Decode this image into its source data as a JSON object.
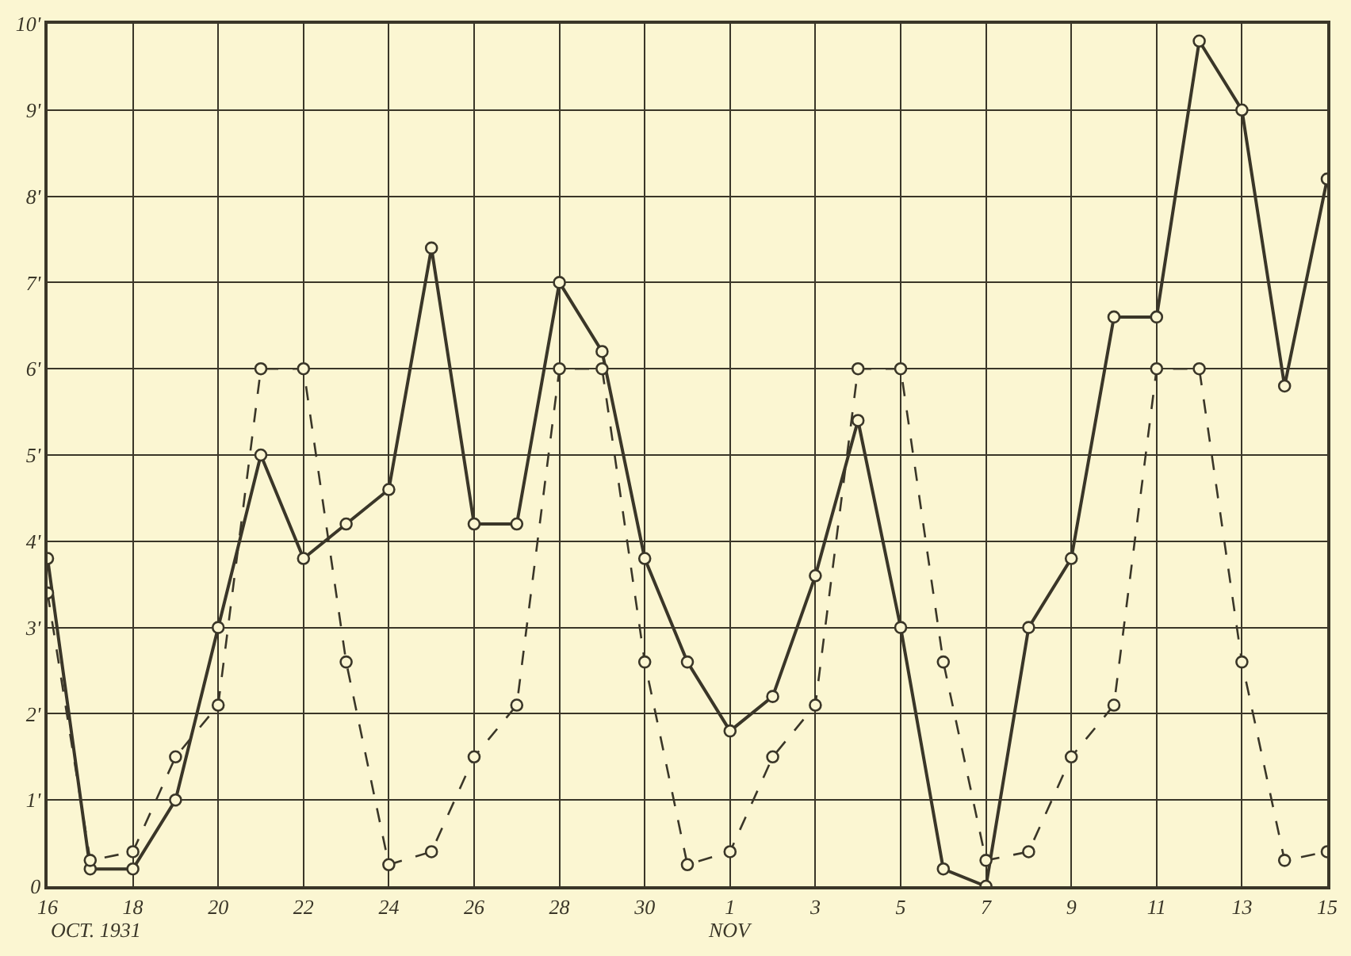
{
  "chart_data": {
    "type": "line",
    "x": [
      "1931-10-16",
      "1931-10-17",
      "1931-10-18",
      "1931-10-19",
      "1931-10-20",
      "1931-10-21",
      "1931-10-22",
      "1931-10-23",
      "1931-10-24",
      "1931-10-25",
      "1931-10-26",
      "1931-10-27",
      "1931-10-28",
      "1931-10-29",
      "1931-10-30",
      "1931-10-31",
      "1931-11-01",
      "1931-11-02",
      "1931-11-03",
      "1931-11-04",
      "1931-11-05",
      "1931-11-06",
      "1931-11-07",
      "1931-11-08",
      "1931-11-09",
      "1931-11-10",
      "1931-11-11",
      "1931-11-12",
      "1931-11-13",
      "1931-11-14",
      "1931-11-15"
    ],
    "series": [
      {
        "color": "#3a3628",
        "line_style": "solid",
        "values": [
          3.8,
          0.2,
          0.2,
          1.0,
          3.0,
          5.0,
          3.8,
          4.2,
          4.6,
          7.4,
          4.2,
          4.2,
          7.0,
          6.2,
          3.8,
          2.6,
          1.8,
          2.2,
          3.6,
          5.4,
          3.0,
          0.2,
          0,
          3.0,
          3.8,
          6.6,
          6.6,
          9.8,
          9.0,
          5.8,
          8.2
        ]
      },
      {
        "color": "#3a3628",
        "line_style": "dashed",
        "values": [
          3.4,
          0.3,
          0.4,
          1.5,
          2.1,
          6,
          6,
          2.6,
          0.25,
          0.4,
          1.5,
          2.1,
          6,
          6,
          2.6,
          0.25,
          0.4,
          1.5,
          2.1,
          6,
          6,
          2.6,
          0.3,
          0.4,
          1.5,
          2.1,
          6,
          6,
          2.6,
          0.3,
          0.4
        ]
      }
    ],
    "xlim": [
      "1931-10-16",
      "1931-11-15"
    ],
    "xticks": [
      {
        "value": "1931-10-16",
        "label": "16"
      },
      {
        "value": "1931-10-18",
        "label": "18"
      },
      {
        "value": "1931-10-20",
        "label": "20"
      },
      {
        "value": "1931-10-22",
        "label": "22"
      },
      {
        "value": "1931-10-24",
        "label": "24"
      },
      {
        "value": "1931-10-26",
        "label": "26"
      },
      {
        "value": "1931-10-28",
        "label": "28"
      },
      {
        "value": "1931-10-30",
        "label": "30"
      },
      {
        "value": "1931-11-01",
        "label": "1"
      },
      {
        "value": "1931-11-03",
        "label": "3"
      },
      {
        "value": "1931-11-05",
        "label": "5"
      },
      {
        "value": "1931-11-07",
        "label": "7"
      },
      {
        "value": "1931-11-09",
        "label": "9"
      },
      {
        "value": "1931-11-11",
        "label": "11"
      },
      {
        "value": "1931-11-13",
        "label": "13"
      },
      {
        "value": "1931-11-15",
        "label": "15"
      }
    ],
    "ylim": [
      0,
      10
    ],
    "yticks": [
      0,
      {
        "value": 1,
        "label": "1'"
      },
      {
        "value": 2,
        "label": "2'"
      },
      {
        "value": 3,
        "label": "3'"
      },
      {
        "value": 4,
        "label": "4'"
      },
      {
        "value": 5,
        "label": "5'"
      },
      {
        "value": 6,
        "label": "6'"
      },
      {
        "value": 7,
        "label": "7'"
      },
      {
        "value": 8,
        "label": "8'"
      },
      {
        "value": 9,
        "label": "9'"
      },
      {
        "value": 10,
        "label": "10'"
      }
    ],
    "grid": true,
    "marker": "circle",
    "annotations": [
      "OCT. 1931",
      "NOV"
    ]
  }
}
